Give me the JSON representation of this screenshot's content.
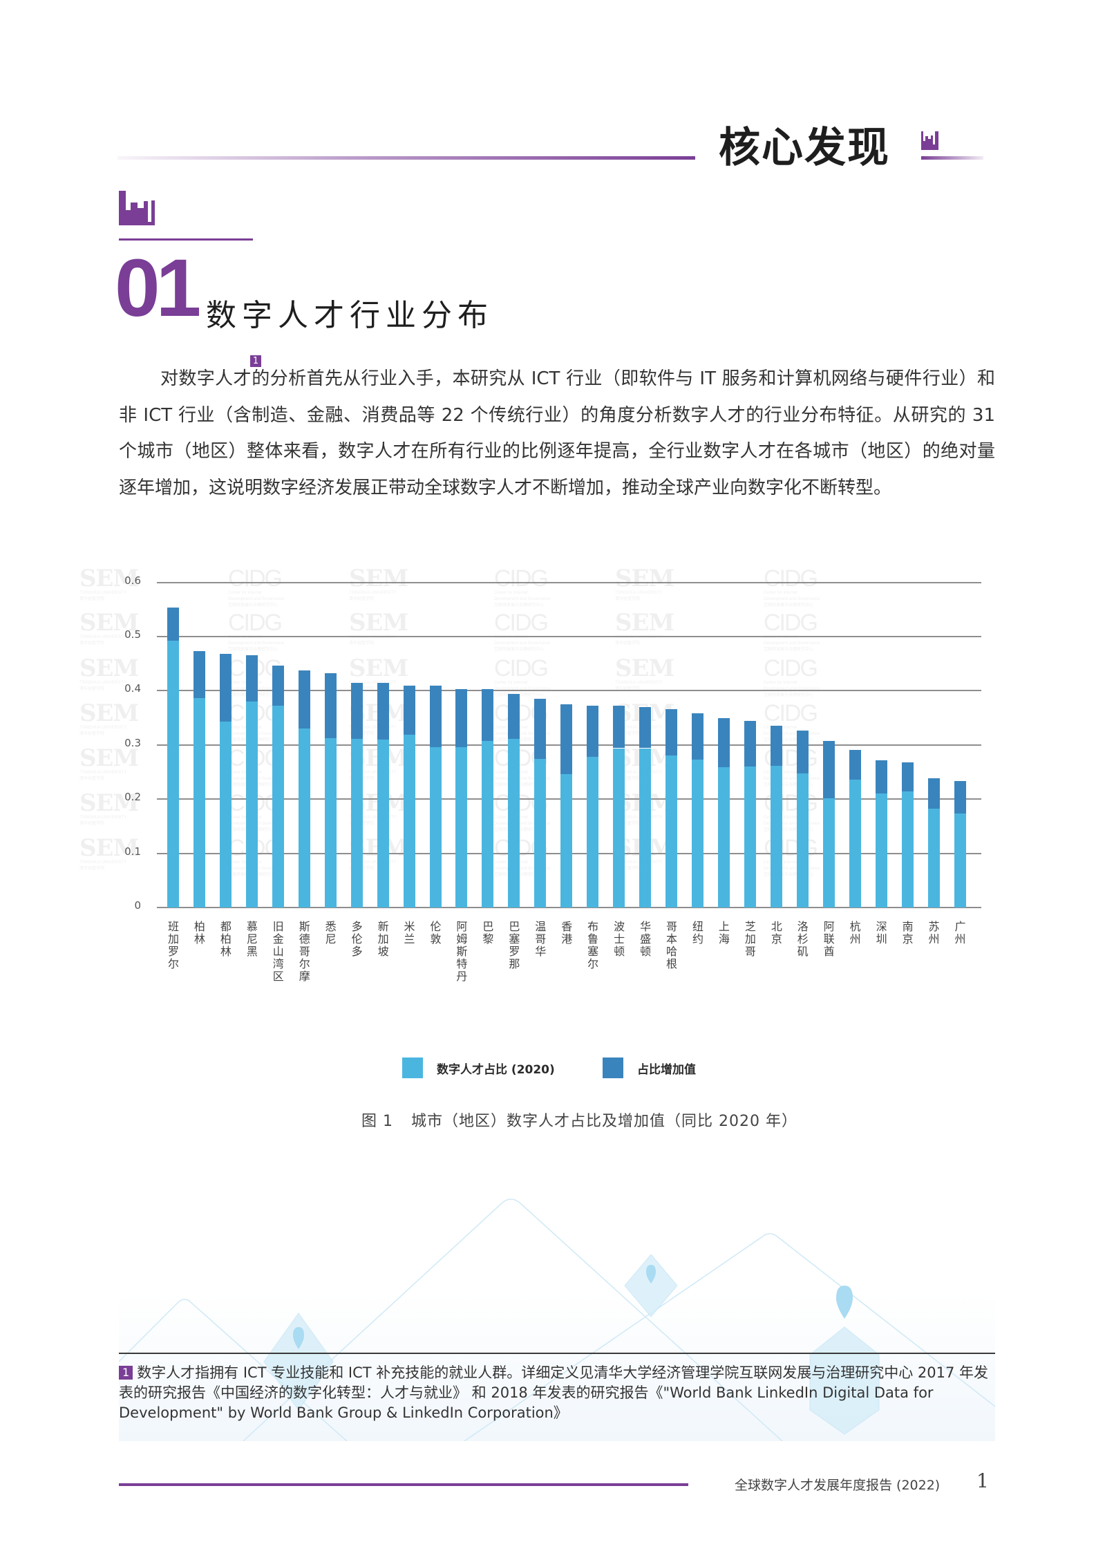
{
  "header": {
    "title": "核心发现",
    "icon": "building-bars-icon"
  },
  "section": {
    "number": "01",
    "title": "数字人才行业分布",
    "icon": "building-bars-icon"
  },
  "paragraph": {
    "part1": "对数字人才",
    "footnote_ref": "1",
    "part2": "的分析首先从行业入手，本研究从 ICT 行业（即软件与 IT 服务和计算机网络与硬件行业）和非 ICT 行业（含制造、金融、消费品等 22 个传统行业）的角度分析数字人才的行业分布特征。从研究的 31 个城市（地区）整体来看，数字人才在所有行业的比例逐年提高，全行业数字人才在各城市（地区）的绝对量逐年增加，这说明数字经济发展正带动全球数字人才不断增加，推动全球产业向数字化不断转型。"
  },
  "colors": {
    "accent": "#7a3e96",
    "base_series": "#4ab6e0",
    "increase_series": "#3a84bd",
    "gridline": "#8e8e8e"
  },
  "chart_data": {
    "type": "bar",
    "stacked": true,
    "title": "城市（地区）数字人才占比及增加值（同比 2020 年）",
    "figure_label": "图 1",
    "xlabel": "",
    "ylabel": "",
    "ylim": [
      0,
      0.6
    ],
    "yticks": [
      "0",
      "0.1",
      "0.2",
      "0.3",
      "0.4",
      "0.5",
      "0.6"
    ],
    "grid": true,
    "legend_position": "bottom",
    "categories": [
      "班加罗尔",
      "柏林",
      "都柏林",
      "慕尼黑",
      "旧金山湾区",
      "斯德哥尔摩",
      "悉尼",
      "多伦多",
      "新加坡",
      "米兰",
      "伦敦",
      "阿姆斯特丹",
      "巴黎",
      "巴塞罗那",
      "温哥华",
      "香港",
      "布鲁塞尔",
      "波士顿",
      "华盛顿",
      "哥本哈根",
      "纽约",
      "上海",
      "芝加哥",
      "北京",
      "洛杉矶",
      "阿联酋",
      "杭州",
      "深圳",
      "南京",
      "苏州",
      "广州"
    ],
    "series": [
      {
        "name": "数字人才占比 (2020)",
        "color": "#4ab6e0",
        "values": [
          0.492,
          0.386,
          0.343,
          0.38,
          0.373,
          0.33,
          0.312,
          0.311,
          0.31,
          0.319,
          0.296,
          0.296,
          0.307,
          0.311,
          0.274,
          0.246,
          0.278,
          0.294,
          0.294,
          0.281,
          0.273,
          0.259,
          0.26,
          0.261,
          0.248,
          0.202,
          0.236,
          0.21,
          0.214,
          0.182,
          0.173
        ]
      },
      {
        "name": "占比增加值",
        "color": "#3a84bd",
        "values": [
          0.062,
          0.087,
          0.125,
          0.085,
          0.073,
          0.107,
          0.121,
          0.104,
          0.105,
          0.091,
          0.114,
          0.107,
          0.096,
          0.083,
          0.111,
          0.129,
          0.095,
          0.079,
          0.076,
          0.085,
          0.086,
          0.091,
          0.084,
          0.075,
          0.078,
          0.105,
          0.055,
          0.062,
          0.054,
          0.056,
          0.061
        ]
      }
    ],
    "totals": [
      0.554,
      0.473,
      0.468,
      0.465,
      0.446,
      0.437,
      0.433,
      0.415,
      0.415,
      0.41,
      0.41,
      0.403,
      0.403,
      0.394,
      0.385,
      0.375,
      0.373,
      0.373,
      0.37,
      0.366,
      0.359,
      0.35,
      0.344,
      0.336,
      0.326,
      0.307,
      0.291,
      0.272,
      0.268,
      0.238,
      0.234
    ]
  },
  "legend": {
    "items": [
      "数字人才占比 (2020)",
      "占比增加值"
    ]
  },
  "caption": {
    "label": "图 1",
    "text": "城市（地区）数字人才占比及增加值（同比 2020 年）"
  },
  "watermark": {
    "sem": "SEM",
    "sem_sub1": "TSINGHUA UNIVERSITY",
    "sem_sub2": "清华经管学院",
    "cidg": "CIDG",
    "cidg_sub1": "Center for Internet",
    "cidg_sub2": "Development and Governance",
    "cidg_sub3": "互联网发展与治理研究中心"
  },
  "footnote": {
    "badge": "1",
    "text": "数字人才指拥有 ICT 专业技能和 ICT 补充技能的就业人群。详细定义见清华大学经济管理学院互联网发展与治理研究中心 2017 年发表的研究报告《中国经济的数字化转型：人才与就业》 和 2018 年发表的研究报告《\"World Bank LinkedIn Digital Data for Development\" by World Bank Group & LinkedIn Corporation》"
  },
  "footer": {
    "report_title": "全球数字人才发展年度报告 (2022)",
    "page_number": "1"
  }
}
